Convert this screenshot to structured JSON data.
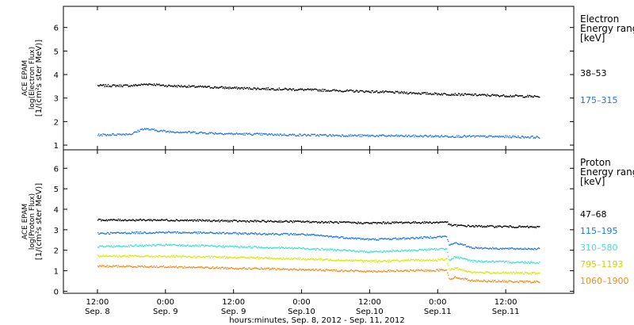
{
  "chart_data": [
    {
      "type": "scatter",
      "panel": "electron",
      "ylabel_lines": [
        "ACE EPAM",
        "log(Electron Flux)",
        "[1/(cm²s ster MeV)]"
      ],
      "ylim": [
        0.8,
        6.9
      ],
      "yticks": [
        1,
        2,
        3,
        4,
        5,
        6
      ],
      "legend_title": [
        "Electron",
        "Energy range",
        "[keV]"
      ],
      "series": [
        {
          "name": "38–53",
          "color": "#000000",
          "x_hours": [
            0,
            6,
            9,
            12,
            24,
            36,
            48,
            60,
            72,
            78
          ],
          "y": [
            3.55,
            3.55,
            3.62,
            3.55,
            3.45,
            3.38,
            3.3,
            3.2,
            3.12,
            3.08
          ]
        },
        {
          "name": "175–315",
          "color": "#1e78dc",
          "x_hours": [
            0,
            6,
            8,
            12,
            24,
            36,
            48,
            60,
            72,
            78
          ],
          "y": [
            1.45,
            1.5,
            1.72,
            1.6,
            1.5,
            1.45,
            1.42,
            1.4,
            1.38,
            1.36
          ]
        }
      ]
    },
    {
      "type": "scatter",
      "panel": "proton",
      "ylabel_lines": [
        "ACE EPAM",
        "log(Proton Flux)",
        "[1/(cm²s ster MeV)]"
      ],
      "ylim": [
        -0.1,
        6.9
      ],
      "yticks": [
        0,
        1,
        2,
        3,
        4,
        5,
        6
      ],
      "legend_title": [
        "Proton",
        "Energy range",
        "[keV]"
      ],
      "series": [
        {
          "name": "47–68",
          "color": "#000000",
          "x_hours": [
            0,
            12,
            24,
            36,
            48,
            54,
            60,
            61.5,
            62,
            66,
            72,
            78
          ],
          "y": [
            3.5,
            3.5,
            3.45,
            3.42,
            3.35,
            3.38,
            3.38,
            3.42,
            3.25,
            3.2,
            3.18,
            3.15
          ]
        },
        {
          "name": "115–195",
          "color": "#1e78dc",
          "x_hours": [
            0,
            12,
            24,
            36,
            48,
            54,
            60,
            61.5,
            62,
            63,
            66,
            72,
            78
          ],
          "y": [
            2.85,
            2.9,
            2.85,
            2.8,
            2.55,
            2.6,
            2.68,
            2.7,
            2.25,
            2.4,
            2.15,
            2.1,
            2.1
          ]
        },
        {
          "name": "310–580",
          "color": "#40e0d0",
          "x_hours": [
            0,
            12,
            24,
            36,
            48,
            54,
            60,
            61.5,
            62,
            63,
            66,
            72,
            78
          ],
          "y": [
            2.2,
            2.28,
            2.2,
            2.12,
            1.95,
            2.0,
            2.08,
            2.1,
            1.55,
            1.7,
            1.5,
            1.45,
            1.42
          ]
        },
        {
          "name": "795–1193",
          "color": "#d8e800",
          "x_hours": [
            0,
            12,
            24,
            36,
            48,
            54,
            60,
            61.5,
            62,
            63,
            66,
            72,
            78
          ],
          "y": [
            1.75,
            1.72,
            1.68,
            1.6,
            1.5,
            1.52,
            1.55,
            1.58,
            1.05,
            1.15,
            0.95,
            0.92,
            0.9
          ]
        },
        {
          "name": "1060–1900",
          "color": "#f08c1e",
          "x_hours": [
            0,
            12,
            24,
            36,
            48,
            54,
            60,
            61.5,
            62,
            63,
            66,
            72,
            78
          ],
          "y": [
            1.25,
            1.22,
            1.15,
            1.08,
            1.0,
            1.02,
            1.05,
            1.08,
            0.62,
            0.7,
            0.55,
            0.5,
            0.48
          ]
        }
      ]
    }
  ],
  "x_axis": {
    "range_hours": [
      -6,
      84
    ],
    "ticks": [
      {
        "h": 0,
        "time": "12:00",
        "date": "Sep. 8"
      },
      {
        "h": 12,
        "time": "0:00",
        "date": "Sep. 9"
      },
      {
        "h": 24,
        "time": "12:00",
        "date": "Sep. 9"
      },
      {
        "h": 36,
        "time": "0:00",
        "date": "Sep.10"
      },
      {
        "h": 48,
        "time": "12:00",
        "date": "Sep.10"
      },
      {
        "h": 60,
        "time": "0:00",
        "date": "Sep.11"
      },
      {
        "h": 72,
        "time": "12:00",
        "date": "Sep.11"
      }
    ],
    "xlabel": "hours:minutes, Sep.  8, 2012 - Sep. 11, 2012"
  }
}
